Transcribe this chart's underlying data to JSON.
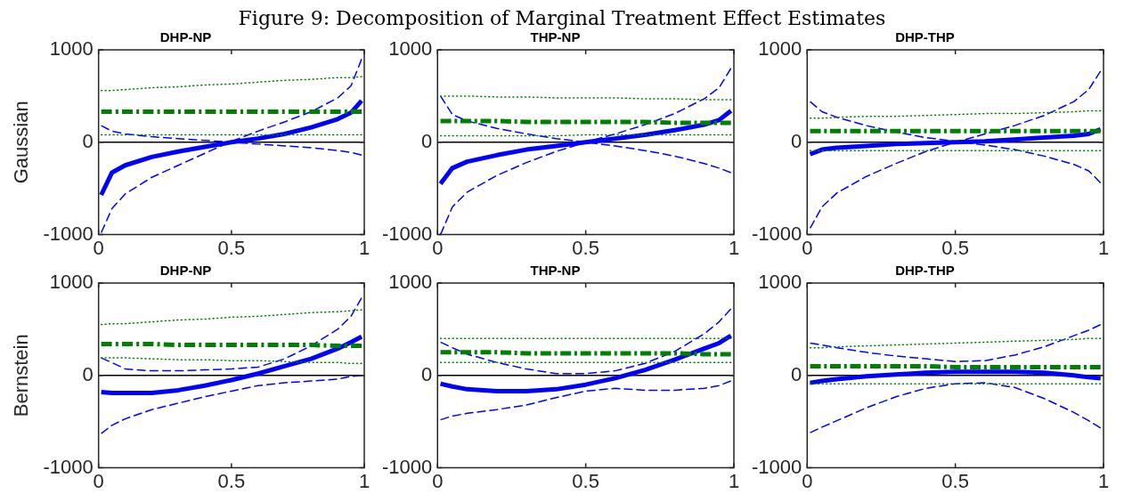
{
  "chart_data": [
    {
      "type": "line",
      "title": "DHP-NP",
      "ylabel": "Gaussian",
      "annotations": [
        "Figure 9: Decomposition of Marginal Treatment Effect Estimates"
      ],
      "x": [
        0.01,
        0.05,
        0.1,
        0.2,
        0.3,
        0.4,
        0.5,
        0.6,
        0.7,
        0.8,
        0.9,
        0.95,
        0.99
      ],
      "xlim": [
        0,
        1
      ],
      "xticks": [
        0,
        0.5,
        1
      ],
      "ylim": [
        -1000,
        1000
      ],
      "yticks": [
        -1000,
        0,
        1000
      ],
      "grid": false,
      "legend": false,
      "ref_lines": [
        {
          "axis": "y",
          "value": 0,
          "color": "#000000"
        }
      ],
      "series": [
        {
          "color": "#0000ff",
          "line_style": "solid",
          "values": [
            -570,
            -330,
            -250,
            -160,
            -100,
            -50,
            0,
            40,
            90,
            160,
            250,
            320,
            450
          ]
        },
        {
          "color": "#0000ff",
          "line_style": "dashed",
          "values": [
            180,
            120,
            90,
            60,
            40,
            20,
            0,
            -20,
            -40,
            -60,
            -90,
            -110,
            -140
          ]
        },
        {
          "color": "#0000ff",
          "line_style": "dashed",
          "values": [
            -980,
            -720,
            -560,
            -380,
            -250,
            -120,
            10,
            120,
            220,
            330,
            480,
            610,
            900
          ]
        },
        {
          "color": "#008000",
          "line_style": "dashdot",
          "values": [
            330,
            330,
            330,
            330,
            330,
            330,
            330,
            330,
            330,
            330,
            330,
            330,
            330
          ]
        },
        {
          "color": "#008000",
          "line_style": "dotted",
          "values": [
            560,
            560,
            570,
            590,
            600,
            620,
            630,
            650,
            670,
            680,
            700,
            700,
            710
          ]
        },
        {
          "color": "#008000",
          "line_style": "dotted",
          "values": [
            80,
            80,
            80,
            80,
            80,
            80,
            80,
            80,
            80,
            80,
            80,
            80,
            80
          ]
        }
      ]
    },
    {
      "type": "line",
      "title": "THP-NP",
      "x": [
        0.01,
        0.05,
        0.1,
        0.2,
        0.3,
        0.4,
        0.5,
        0.6,
        0.7,
        0.8,
        0.9,
        0.95,
        0.99
      ],
      "xlim": [
        0,
        1
      ],
      "xticks": [
        0,
        0.5,
        1
      ],
      "ylim": [
        -1000,
        1000
      ],
      "yticks": [
        -1000,
        0,
        1000
      ],
      "grid": false,
      "legend": false,
      "ref_lines": [
        {
          "axis": "y",
          "value": 0,
          "color": "#000000"
        }
      ],
      "series": [
        {
          "color": "#0000ff",
          "line_style": "solid",
          "values": [
            -450,
            -280,
            -210,
            -140,
            -80,
            -40,
            0,
            40,
            80,
            130,
            190,
            240,
            340
          ]
        },
        {
          "color": "#0000ff",
          "line_style": "dashed",
          "values": [
            500,
            300,
            230,
            150,
            90,
            40,
            0,
            -40,
            -90,
            -150,
            -230,
            -280,
            -330
          ]
        },
        {
          "color": "#0000ff",
          "line_style": "dashed",
          "values": [
            -1000,
            -700,
            -540,
            -360,
            -220,
            -100,
            0,
            90,
            190,
            310,
            470,
            590,
            800
          ]
        },
        {
          "color": "#008000",
          "line_style": "dashdot",
          "values": [
            230,
            230,
            230,
            230,
            220,
            220,
            220,
            220,
            220,
            210,
            210,
            210,
            210
          ]
        },
        {
          "color": "#008000",
          "line_style": "dotted",
          "values": [
            500,
            500,
            500,
            490,
            490,
            480,
            480,
            480,
            470,
            470,
            460,
            460,
            460
          ]
        },
        {
          "color": "#008000",
          "line_style": "dotted",
          "values": [
            70,
            70,
            70,
            70,
            70,
            70,
            80,
            80,
            80,
            80,
            80,
            80,
            80
          ]
        }
      ]
    },
    {
      "type": "line",
      "title": "DHP-THP",
      "x": [
        0.01,
        0.05,
        0.1,
        0.2,
        0.3,
        0.4,
        0.5,
        0.6,
        0.7,
        0.8,
        0.9,
        0.95,
        0.99
      ],
      "xlim": [
        0,
        1
      ],
      "xticks": [
        0,
        0.5,
        1
      ],
      "ylim": [
        -1000,
        1000
      ],
      "yticks": [
        -1000,
        0,
        1000
      ],
      "grid": false,
      "legend": false,
      "ref_lines": [
        {
          "axis": "y",
          "value": 0,
          "color": "#000000"
        }
      ],
      "series": [
        {
          "color": "#0000ff",
          "line_style": "solid",
          "values": [
            -130,
            -80,
            -60,
            -40,
            -20,
            -10,
            0,
            10,
            30,
            50,
            70,
            90,
            140
          ]
        },
        {
          "color": "#0000ff",
          "line_style": "dashed",
          "values": [
            440,
            330,
            270,
            180,
            110,
            50,
            10,
            -30,
            -80,
            -150,
            -240,
            -310,
            -440
          ]
        },
        {
          "color": "#0000ff",
          "line_style": "dashed",
          "values": [
            -930,
            -700,
            -550,
            -370,
            -230,
            -100,
            0,
            90,
            180,
            290,
            440,
            570,
            770
          ]
        },
        {
          "color": "#008000",
          "line_style": "dashdot",
          "values": [
            120,
            120,
            120,
            120,
            120,
            120,
            120,
            120,
            120,
            120,
            120,
            120,
            120
          ]
        },
        {
          "color": "#008000",
          "line_style": "dotted",
          "values": [
            260,
            260,
            270,
            280,
            280,
            290,
            300,
            310,
            310,
            320,
            330,
            340,
            340
          ]
        },
        {
          "color": "#008000",
          "line_style": "dotted",
          "values": [
            -90,
            -90,
            -90,
            -90,
            -90,
            -90,
            -90,
            -90,
            -90,
            -90,
            -90,
            -90,
            -90
          ]
        }
      ]
    },
    {
      "type": "line",
      "title": "DHP-NP",
      "ylabel": "Bernstein",
      "x": [
        0.01,
        0.05,
        0.1,
        0.2,
        0.3,
        0.4,
        0.5,
        0.6,
        0.7,
        0.8,
        0.9,
        0.95,
        0.99
      ],
      "xlim": [
        0,
        1
      ],
      "xticks": [
        0,
        0.5,
        1
      ],
      "ylim": [
        -1000,
        1000
      ],
      "yticks": [
        -1000,
        0,
        1000
      ],
      "grid": false,
      "legend": false,
      "ref_lines": [
        {
          "axis": "y",
          "value": 0,
          "color": "#000000"
        }
      ],
      "series": [
        {
          "color": "#0000ff",
          "line_style": "solid",
          "values": [
            -180,
            -190,
            -190,
            -190,
            -160,
            -110,
            -50,
            20,
            100,
            180,
            290,
            360,
            420
          ]
        },
        {
          "color": "#0000ff",
          "line_style": "dashed",
          "values": [
            190,
            140,
            70,
            50,
            50,
            60,
            70,
            90,
            180,
            320,
            500,
            640,
            840
          ]
        },
        {
          "color": "#0000ff",
          "line_style": "dashed",
          "values": [
            -630,
            -540,
            -470,
            -370,
            -300,
            -230,
            -170,
            -110,
            -80,
            -60,
            -40,
            -10,
            0
          ]
        },
        {
          "color": "#008000",
          "line_style": "dashdot",
          "values": [
            340,
            340,
            340,
            340,
            330,
            330,
            330,
            330,
            330,
            330,
            320,
            320,
            320
          ]
        },
        {
          "color": "#008000",
          "line_style": "dotted",
          "values": [
            550,
            560,
            560,
            580,
            600,
            610,
            630,
            640,
            660,
            680,
            690,
            700,
            710
          ]
        },
        {
          "color": "#008000",
          "line_style": "dotted",
          "values": [
            190,
            190,
            190,
            180,
            170,
            170,
            160,
            160,
            150,
            140,
            140,
            130,
            130
          ]
        }
      ]
    },
    {
      "type": "line",
      "title": "THP-NP",
      "x": [
        0.01,
        0.05,
        0.1,
        0.2,
        0.3,
        0.4,
        0.5,
        0.6,
        0.7,
        0.8,
        0.9,
        0.95,
        0.99
      ],
      "xlim": [
        0,
        1
      ],
      "xticks": [
        0,
        0.5,
        1
      ],
      "ylim": [
        -1000,
        1000
      ],
      "yticks": [
        -1000,
        0,
        1000
      ],
      "grid": false,
      "legend": false,
      "ref_lines": [
        {
          "axis": "y",
          "value": 0,
          "color": "#000000"
        }
      ],
      "series": [
        {
          "color": "#0000ff",
          "line_style": "solid",
          "values": [
            -90,
            -120,
            -150,
            -170,
            -170,
            -150,
            -100,
            -30,
            60,
            170,
            290,
            350,
            430
          ]
        },
        {
          "color": "#0000ff",
          "line_style": "dashed",
          "values": [
            360,
            300,
            230,
            140,
            70,
            20,
            20,
            50,
            130,
            260,
            450,
            580,
            720
          ]
        },
        {
          "color": "#0000ff",
          "line_style": "dashed",
          "values": [
            -480,
            -440,
            -410,
            -370,
            -320,
            -240,
            -170,
            -140,
            -160,
            -160,
            -140,
            -110,
            -60
          ]
        },
        {
          "color": "#008000",
          "line_style": "dashdot",
          "values": [
            250,
            250,
            250,
            250,
            240,
            240,
            240,
            240,
            240,
            240,
            230,
            230,
            230
          ]
        },
        {
          "color": "#008000",
          "line_style": "dotted",
          "values": [
            400,
            400,
            400,
            400,
            400,
            400,
            400,
            400,
            400,
            400,
            400,
            400,
            400
          ]
        },
        {
          "color": "#008000",
          "line_style": "dotted",
          "values": [
            140,
            140,
            140,
            140,
            140,
            140,
            140,
            140,
            140,
            140,
            140,
            140,
            140
          ]
        }
      ]
    },
    {
      "type": "line",
      "title": "DHP-THP",
      "x": [
        0.01,
        0.05,
        0.1,
        0.2,
        0.3,
        0.4,
        0.5,
        0.6,
        0.7,
        0.8,
        0.9,
        0.95,
        0.99
      ],
      "xlim": [
        0,
        1
      ],
      "xticks": [
        0,
        0.5,
        1
      ],
      "ylim": [
        -1000,
        1000
      ],
      "yticks": [
        -1000,
        0,
        1000
      ],
      "grid": false,
      "legend": false,
      "ref_lines": [
        {
          "axis": "y",
          "value": 0,
          "color": "#000000"
        }
      ],
      "series": [
        {
          "color": "#0000ff",
          "line_style": "solid",
          "values": [
            -80,
            -60,
            -40,
            -10,
            10,
            30,
            40,
            40,
            40,
            30,
            0,
            -20,
            -30
          ]
        },
        {
          "color": "#0000ff",
          "line_style": "dashed",
          "values": [
            350,
            330,
            300,
            250,
            210,
            180,
            150,
            160,
            220,
            310,
            430,
            490,
            550
          ]
        },
        {
          "color": "#0000ff",
          "line_style": "dashed",
          "values": [
            -620,
            -560,
            -490,
            -350,
            -230,
            -140,
            -90,
            -80,
            -130,
            -250,
            -400,
            -490,
            -570
          ]
        },
        {
          "color": "#008000",
          "line_style": "dashdot",
          "values": [
            100,
            100,
            100,
            100,
            100,
            100,
            90,
            90,
            90,
            90,
            90,
            90,
            90
          ]
        },
        {
          "color": "#008000",
          "line_style": "dotted",
          "values": [
            300,
            300,
            310,
            320,
            330,
            340,
            350,
            360,
            370,
            380,
            390,
            400,
            400
          ]
        },
        {
          "color": "#008000",
          "line_style": "dotted",
          "values": [
            -90,
            -90,
            -90,
            -90,
            -90,
            -90,
            -90,
            -90,
            -90,
            -90,
            -90,
            -90,
            -90
          ]
        }
      ]
    }
  ]
}
